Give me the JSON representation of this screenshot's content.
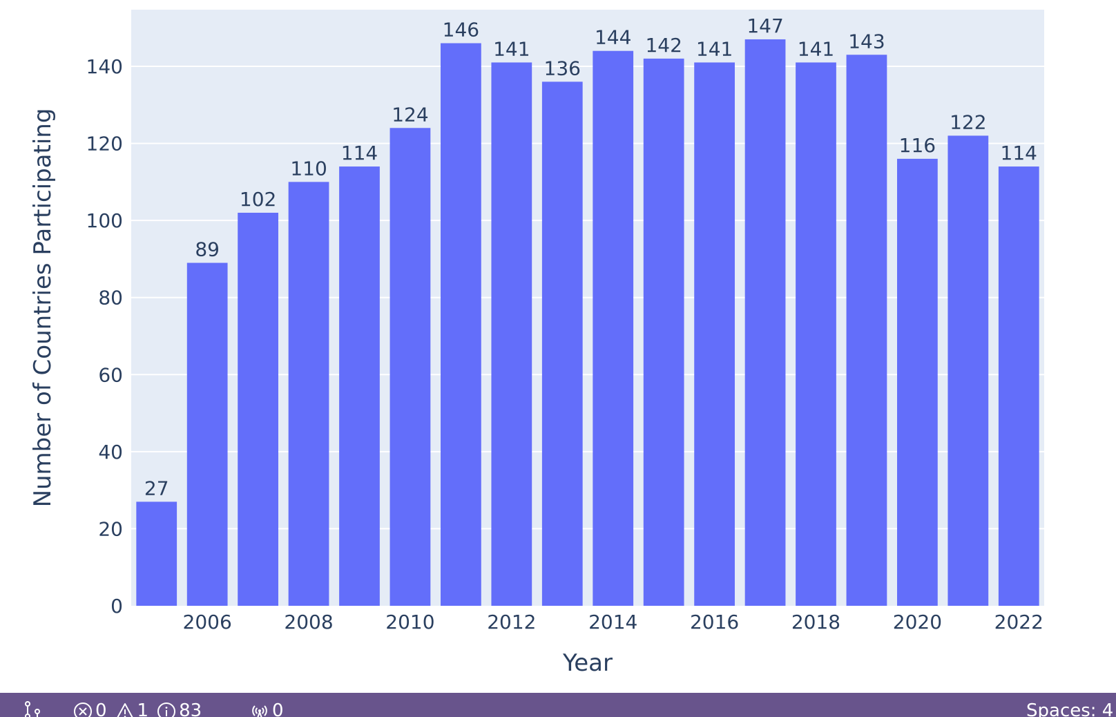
{
  "chart_data": {
    "type": "bar",
    "categories": [
      2005,
      2006,
      2007,
      2008,
      2009,
      2010,
      2011,
      2012,
      2013,
      2014,
      2015,
      2016,
      2017,
      2018,
      2019,
      2020,
      2021,
      2022
    ],
    "values": [
      27,
      89,
      102,
      110,
      114,
      124,
      146,
      141,
      136,
      144,
      142,
      141,
      147,
      141,
      143,
      116,
      122,
      114
    ],
    "data_labels": [
      "27",
      "89",
      "102",
      "110",
      "114",
      "124",
      "146",
      "141",
      "136",
      "144",
      "142",
      "141",
      "147",
      "141",
      "143",
      "116",
      "122",
      "114"
    ],
    "xlabel": "Year",
    "ylabel": "Number of Countries Participating",
    "xlim": [
      2004.5,
      2022.5
    ],
    "ylim": [
      0,
      154.7
    ],
    "x_ticks": [
      2006,
      2008,
      2010,
      2012,
      2014,
      2016,
      2018,
      2020,
      2022
    ],
    "y_ticks": [
      0,
      20,
      40,
      60,
      80,
      100,
      120,
      140
    ],
    "grid": true,
    "legend": "none",
    "colors": {
      "bar": "#636efa",
      "plot_background": "#e5ecf6",
      "grid": "#ffffff",
      "text": "#2a3f5f"
    }
  },
  "status_bar": {
    "background": "#68548c",
    "items": [
      {
        "icon": "source-control-icon",
        "text": ""
      },
      {
        "icon": "error-icon",
        "text": "0"
      },
      {
        "icon": "warning-icon",
        "text": "1"
      },
      {
        "icon": "info-icon",
        "text": "83"
      },
      {
        "icon": "broadcast-icon",
        "text": "0"
      }
    ],
    "indentation": "Spaces: 4"
  }
}
